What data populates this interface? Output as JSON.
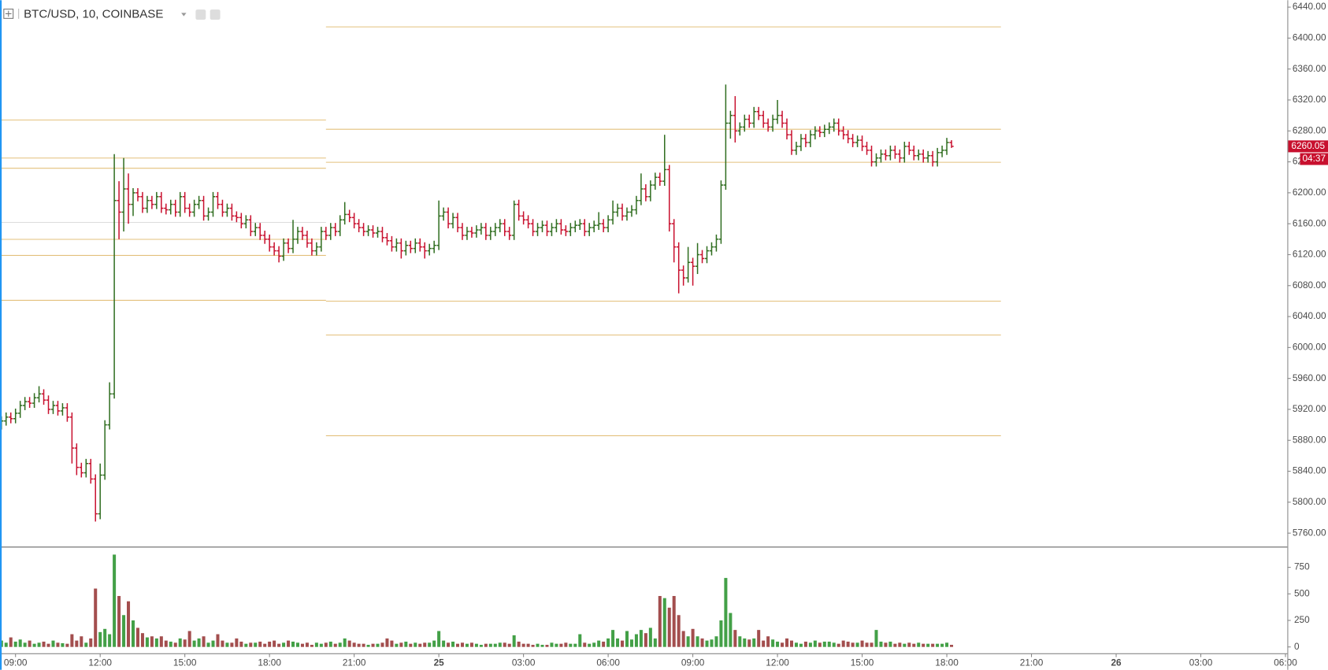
{
  "chart_data": {
    "type": "ohlc",
    "title": "BTC/USD, 10, COINBASE",
    "x": [
      510,
      520,
      530,
      540,
      550,
      560,
      570,
      580,
      590,
      600,
      610,
      620,
      630,
      640,
      650,
      660,
      670,
      680,
      690,
      700,
      710,
      720,
      730,
      740,
      750,
      760,
      770,
      780,
      790,
      800,
      810,
      820,
      830,
      840,
      850,
      860,
      870,
      880,
      890,
      900,
      910,
      920,
      930,
      940,
      950,
      960,
      970,
      980,
      990,
      1000,
      1010,
      1020,
      1030,
      1040,
      1050,
      1060,
      1070,
      1080,
      1090,
      1100,
      1110,
      1120,
      1130,
      1140,
      1150,
      1160,
      1170,
      1180,
      1190,
      1200,
      1210,
      1220,
      1230,
      1240,
      1250,
      1260,
      1270,
      1280,
      1290,
      1300,
      1310,
      1320,
      1330,
      1340,
      1350,
      1360,
      1370,
      1380,
      1390,
      1400,
      1410,
      1420,
      1430,
      1440,
      1450,
      1460,
      1470,
      1480,
      1490,
      1500,
      1510,
      1520,
      1530,
      1540,
      1550,
      1560,
      1570,
      1580,
      1590,
      1600,
      1610,
      1620,
      1630,
      1640,
      1650,
      1660,
      1670,
      1680,
      1690,
      1700,
      1710,
      1720,
      1730,
      1740,
      1750,
      1760,
      1770,
      1780,
      1790,
      1800,
      1810,
      1820,
      1830,
      1840,
      1850,
      1860,
      1870,
      1880,
      1890,
      1900,
      1910,
      1920,
      1930,
      1940,
      1950,
      1960,
      1970,
      1980,
      1990,
      2000,
      2010,
      2020,
      2030,
      2040,
      2050,
      2060,
      2070,
      2080,
      2090,
      2100,
      2110,
      2120,
      2130,
      2140,
      2150,
      2160,
      2170,
      2180,
      2190,
      2200,
      2210,
      2220,
      2230,
      2240,
      2250,
      2260,
      2270,
      2280,
      2290,
      2300,
      2310,
      2320,
      2330,
      2340,
      2350,
      2360,
      2370,
      2380,
      2390,
      2400,
      2410,
      2420,
      2430,
      2440,
      2450,
      2460,
      2470,
      2480,
      2490,
      2500,
      2510,
      2520,
      2530
    ],
    "open": [
      5900,
      5905,
      5910,
      5908,
      5915,
      5925,
      5930,
      5928,
      5935,
      5940,
      5932,
      5920,
      5925,
      5918,
      5922,
      5910,
      5870,
      5845,
      5838,
      5850,
      5830,
      5785,
      5835,
      5900,
      5940,
      6190,
      6175,
      6205,
      6185,
      6200,
      6195,
      6180,
      6190,
      6185,
      6195,
      6180,
      6178,
      6185,
      6175,
      6195,
      6180,
      6175,
      6185,
      6190,
      6170,
      6175,
      6195,
      6185,
      6175,
      6180,
      6170,
      6168,
      6160,
      6165,
      6150,
      6155,
      6145,
      6140,
      6130,
      6125,
      6118,
      6135,
      6128,
      6140,
      6150,
      6145,
      6135,
      6125,
      6130,
      6150,
      6145,
      6155,
      6150,
      6165,
      6172,
      6168,
      6160,
      6155,
      6150,
      6152,
      6148,
      6150,
      6142,
      6138,
      6130,
      6135,
      6125,
      6132,
      6128,
      6135,
      6130,
      6125,
      6128,
      6132,
      6170,
      6175,
      6160,
      6168,
      6155,
      6145,
      6150,
      6148,
      6152,
      6155,
      6145,
      6150,
      6155,
      6160,
      6150,
      6145,
      6185,
      6170,
      6165,
      6160,
      6150,
      6155,
      6158,
      6150,
      6155,
      6160,
      6152,
      6150,
      6155,
      6158,
      6160,
      6150,
      6155,
      6158,
      6160,
      6155,
      6165,
      6175,
      6180,
      6170,
      6175,
      6178,
      6190,
      6205,
      6195,
      6210,
      6220,
      6215,
      6230,
      6160,
      6130,
      6100,
      6090,
      6110,
      6105,
      6120,
      6115,
      6125,
      6130,
      6140,
      6210,
      6290,
      6300,
      6280,
      6285,
      6295,
      6290,
      6305,
      6300,
      6290,
      6285,
      6295,
      6300,
      6290,
      6275,
      6255,
      6260,
      6270,
      6265,
      6275,
      6280,
      6278,
      6282,
      6285,
      6290,
      6280,
      6275,
      6270,
      6265,
      6268,
      6260,
      6255,
      6240,
      6245,
      6250,
      6248,
      6255,
      6250,
      6245,
      6260,
      6255,
      6248,
      6250,
      6245,
      6248,
      6240,
      6252,
      6255,
      6265
    ],
    "high": [
      5911,
      5916,
      5916,
      5921,
      5931,
      5936,
      5936,
      5941,
      5950,
      5946,
      5938,
      5931,
      5931,
      5928,
      5928,
      5916,
      5876,
      5851,
      5856,
      5856,
      5836,
      5850,
      5906,
      5955,
      6250,
      6215,
      6245,
      6225,
      6206,
      6206,
      6201,
      6196,
      6196,
      6201,
      6201,
      6186,
      6191,
      6191,
      6201,
      6201,
      6186,
      6191,
      6196,
      6196,
      6181,
      6201,
      6201,
      6191,
      6186,
      6186,
      6176,
      6174,
      6171,
      6171,
      6161,
      6161,
      6151,
      6146,
      6136,
      6131,
      6141,
      6141,
      6165,
      6156,
      6156,
      6151,
      6141,
      6136,
      6156,
      6156,
      6161,
      6161,
      6171,
      6188,
      6178,
      6174,
      6166,
      6161,
      6158,
      6158,
      6156,
      6156,
      6148,
      6144,
      6141,
      6141,
      6138,
      6138,
      6141,
      6141,
      6136,
      6134,
      6138,
      6190,
      6181,
      6181,
      6174,
      6174,
      6161,
      6156,
      6156,
      6158,
      6161,
      6161,
      6156,
      6161,
      6166,
      6166,
      6156,
      6190,
      6191,
      6176,
      6171,
      6166,
      6161,
      6164,
      6164,
      6161,
      6166,
      6166,
      6158,
      6161,
      6164,
      6166,
      6166,
      6161,
      6164,
      6175,
      6166,
      6171,
      6190,
      6186,
      6186,
      6181,
      6184,
      6196,
      6225,
      6211,
      6216,
      6226,
      6226,
      6275,
      6236,
      6166,
      6136,
      6106,
      6130,
      6116,
      6135,
      6126,
      6131,
      6136,
      6146,
      6216,
      6340,
      6306,
      6325,
      6291,
      6301,
      6301,
      6311,
      6311,
      6306,
      6296,
      6301,
      6320,
      6306,
      6296,
      6281,
      6266,
      6276,
      6276,
      6281,
      6286,
      6286,
      6288,
      6291,
      6296,
      6296,
      6286,
      6281,
      6276,
      6274,
      6274,
      6266,
      6261,
      6251,
      6256,
      6256,
      6261,
      6261,
      6256,
      6266,
      6266,
      6261,
      6256,
      6256,
      6254,
      6254,
      6258,
      6261,
      6271,
      6268
    ],
    "low": [
      5894,
      5899,
      5902,
      5902,
      5909,
      5919,
      5922,
      5922,
      5929,
      5926,
      5914,
      5914,
      5912,
      5912,
      5904,
      5850,
      5835,
      5832,
      5832,
      5824,
      5775,
      5778,
      5829,
      5894,
      5934,
      6140,
      6150,
      6160,
      6170,
      6189,
      6174,
      6174,
      6179,
      6179,
      6174,
      6172,
      6172,
      6169,
      6169,
      6174,
      6169,
      6169,
      6179,
      6164,
      6164,
      6169,
      6179,
      6169,
      6169,
      6164,
      6162,
      6154,
      6154,
      6144,
      6144,
      6139,
      6134,
      6124,
      6119,
      6110,
      6112,
      6122,
      6122,
      6134,
      6139,
      6129,
      6119,
      6119,
      6124,
      6139,
      6139,
      6144,
      6144,
      6159,
      6162,
      6154,
      6149,
      6144,
      6144,
      6142,
      6142,
      6136,
      6132,
      6124,
      6124,
      6115,
      6119,
      6122,
      6122,
      6124,
      6115,
      6119,
      6122,
      6126,
      6164,
      6154,
      6154,
      6149,
      6139,
      6139,
      6142,
      6142,
      6146,
      6139,
      6139,
      6144,
      6149,
      6144,
      6139,
      6139,
      6164,
      6159,
      6154,
      6144,
      6144,
      6149,
      6144,
      6144,
      6149,
      6146,
      6144,
      6144,
      6149,
      6152,
      6144,
      6144,
      6149,
      6152,
      6149,
      6149,
      6159,
      6169,
      6164,
      6164,
      6169,
      6172,
      6184,
      6189,
      6189,
      6204,
      6209,
      6209,
      6150,
      6110,
      6070,
      6080,
      6084,
      6080,
      6095,
      6109,
      6109,
      6119,
      6124,
      6134,
      6204,
      6270,
      6265,
      6274,
      6279,
      6284,
      6284,
      6294,
      6284,
      6279,
      6279,
      6289,
      6284,
      6269,
      6249,
      6249,
      6254,
      6259,
      6259,
      6269,
      6272,
      6272,
      6276,
      6279,
      6274,
      6269,
      6264,
      6259,
      6259,
      6254,
      6249,
      6234,
      6234,
      6239,
      6242,
      6242,
      6244,
      6239,
      6239,
      6249,
      6242,
      6242,
      6239,
      6239,
      6234,
      6234,
      6246,
      6249,
      6258
    ],
    "close": [
      5905,
      5910,
      5908,
      5915,
      5925,
      5930,
      5928,
      5935,
      5940,
      5932,
      5920,
      5925,
      5918,
      5922,
      5910,
      5870,
      5845,
      5838,
      5850,
      5830,
      5785,
      5835,
      5900,
      5940,
      6190,
      6175,
      6205,
      6185,
      6200,
      6195,
      6180,
      6190,
      6185,
      6195,
      6180,
      6178,
      6185,
      6175,
      6195,
      6180,
      6175,
      6185,
      6190,
      6170,
      6175,
      6195,
      6185,
      6175,
      6180,
      6170,
      6168,
      6160,
      6165,
      6150,
      6155,
      6145,
      6140,
      6130,
      6125,
      6118,
      6135,
      6128,
      6140,
      6150,
      6145,
      6135,
      6125,
      6130,
      6150,
      6145,
      6155,
      6150,
      6165,
      6172,
      6168,
      6160,
      6155,
      6150,
      6152,
      6148,
      6150,
      6142,
      6138,
      6130,
      6135,
      6125,
      6132,
      6128,
      6135,
      6130,
      6125,
      6128,
      6132,
      6170,
      6175,
      6160,
      6168,
      6155,
      6145,
      6150,
      6148,
      6152,
      6155,
      6145,
      6150,
      6155,
      6160,
      6150,
      6145,
      6185,
      6170,
      6165,
      6160,
      6150,
      6155,
      6158,
      6150,
      6155,
      6160,
      6152,
      6150,
      6155,
      6158,
      6160,
      6150,
      6155,
      6158,
      6160,
      6155,
      6165,
      6175,
      6180,
      6170,
      6175,
      6178,
      6190,
      6205,
      6195,
      6210,
      6220,
      6215,
      6230,
      6160,
      6130,
      6100,
      6090,
      6110,
      6105,
      6120,
      6115,
      6125,
      6130,
      6140,
      6210,
      6290,
      6300,
      6280,
      6285,
      6295,
      6290,
      6305,
      6300,
      6290,
      6285,
      6295,
      6300,
      6290,
      6275,
      6255,
      6260,
      6270,
      6265,
      6275,
      6280,
      6278,
      6282,
      6285,
      6290,
      6280,
      6275,
      6270,
      6265,
      6268,
      6260,
      6255,
      6240,
      6245,
      6250,
      6248,
      6255,
      6250,
      6245,
      6260,
      6255,
      6248,
      6250,
      6245,
      6248,
      6240,
      6252,
      6255,
      6265,
      6260.05
    ],
    "volume": [
      60,
      40,
      90,
      50,
      70,
      40,
      60,
      30,
      40,
      50,
      30,
      60,
      40,
      35,
      30,
      120,
      60,
      100,
      40,
      80,
      550,
      140,
      170,
      120,
      870,
      480,
      300,
      430,
      250,
      180,
      130,
      90,
      100,
      80,
      100,
      60,
      50,
      40,
      80,
      70,
      150,
      60,
      80,
      100,
      40,
      60,
      120,
      60,
      40,
      40,
      80,
      50,
      30,
      40,
      40,
      50,
      30,
      50,
      60,
      30,
      40,
      60,
      50,
      40,
      30,
      40,
      20,
      40,
      30,
      40,
      50,
      30,
      40,
      80,
      60,
      40,
      30,
      30,
      20,
      30,
      30,
      40,
      80,
      60,
      30,
      40,
      50,
      30,
      40,
      30,
      40,
      40,
      60,
      150,
      60,
      40,
      50,
      30,
      40,
      30,
      40,
      30,
      20,
      30,
      30,
      30,
      40,
      40,
      30,
      110,
      50,
      30,
      30,
      20,
      30,
      20,
      20,
      40,
      30,
      30,
      40,
      30,
      30,
      120,
      40,
      30,
      40,
      60,
      50,
      80,
      160,
      80,
      60,
      150,
      70,
      120,
      160,
      130,
      180,
      80,
      480,
      460,
      370,
      480,
      300,
      150,
      100,
      170,
      100,
      80,
      60,
      70,
      100,
      250,
      650,
      320,
      160,
      100,
      80,
      70,
      80,
      160,
      60,
      100,
      70,
      50,
      40,
      80,
      60,
      40,
      30,
      50,
      40,
      60,
      40,
      50,
      50,
      40,
      30,
      60,
      50,
      40,
      40,
      60,
      40,
      40,
      160,
      50,
      40,
      50,
      30,
      40,
      30,
      40,
      30,
      40,
      30,
      30,
      30,
      30,
      30,
      40,
      20
    ],
    "up_color": "#2f6d1f",
    "down_color": "#c8102e",
    "volume_up_color": "#43a047",
    "volume_down_color": "#a34e4e",
    "xlim": [
      507,
      3244
    ],
    "xticks": [
      {
        "value": 540,
        "label": "09:00"
      },
      {
        "value": 720,
        "label": "12:00"
      },
      {
        "value": 900,
        "label": "15:00"
      },
      {
        "value": 1080,
        "label": "18:00"
      },
      {
        "value": 1260,
        "label": "21:00"
      },
      {
        "value": 1440,
        "label": "25"
      },
      {
        "value": 1620,
        "label": "03:00"
      },
      {
        "value": 1800,
        "label": "06:00"
      },
      {
        "value": 1980,
        "label": "09:00"
      },
      {
        "value": 2160,
        "label": "12:00"
      },
      {
        "value": 2340,
        "label": "15:00"
      },
      {
        "value": 2520,
        "label": "18:00"
      },
      {
        "value": 2700,
        "label": "21:00"
      },
      {
        "value": 2880,
        "label": "26"
      },
      {
        "value": 3060,
        "label": "03:00"
      },
      {
        "value": 3240,
        "label": "06:00"
      }
    ],
    "ylim": [
      5742,
      6449
    ],
    "yticks": [
      {
        "value": 5760,
        "label": "5760.00"
      },
      {
        "value": 5800,
        "label": "5800.00"
      },
      {
        "value": 5840,
        "label": "5840.00"
      },
      {
        "value": 5880,
        "label": "5880.00"
      },
      {
        "value": 5920,
        "label": "5920.00"
      },
      {
        "value": 5960,
        "label": "5960.00"
      },
      {
        "value": 6000,
        "label": "6000.00"
      },
      {
        "value": 6040,
        "label": "6040.00"
      },
      {
        "value": 6080,
        "label": "6080.00"
      },
      {
        "value": 6120,
        "label": "6120.00"
      },
      {
        "value": 6160,
        "label": "6160.00"
      },
      {
        "value": 6200,
        "label": "6200.00"
      },
      {
        "value": 6240,
        "label": "6240.00"
      },
      {
        "value": 6280,
        "label": "6280.00"
      },
      {
        "value": 6320,
        "label": "6320.00"
      },
      {
        "value": 6360,
        "label": "6360.00"
      },
      {
        "value": 6400,
        "label": "6400.00"
      },
      {
        "value": 6440,
        "label": "6440.00"
      }
    ],
    "volume_ylim": [
      -56,
      933
    ],
    "volume_yticks": [
      0,
      250,
      500,
      750
    ],
    "levels": [
      {
        "value": 6295,
        "start": 507,
        "end": 1200,
        "color": "#e3c07c"
      },
      {
        "value": 6245,
        "start": 507,
        "end": 1200,
        "color": "#e3c07c"
      },
      {
        "value": 6232,
        "start": 507,
        "end": 1200,
        "color": "#e3c07c"
      },
      {
        "value": 6162,
        "start": 507,
        "end": 1200,
        "color": "#dcdcdc"
      },
      {
        "value": 6140,
        "start": 507,
        "end": 1200,
        "color": "#e3c07c"
      },
      {
        "value": 6120,
        "start": 507,
        "end": 1200,
        "color": "#e3c07c"
      },
      {
        "value": 6062,
        "start": 507,
        "end": 1200,
        "color": "#e3c07c"
      },
      {
        "value": 6415,
        "start": 1200,
        "end": 2635,
        "color": "#e3c07c"
      },
      {
        "value": 6283,
        "start": 1200,
        "end": 2635,
        "color": "#e3c07c"
      },
      {
        "value": 6240,
        "start": 1200,
        "end": 2635,
        "color": "#e3c07c"
      },
      {
        "value": 6060,
        "start": 1200,
        "end": 2635,
        "color": "#e3c07c"
      },
      {
        "value": 6017,
        "start": 1200,
        "end": 2635,
        "color": "#e3c07c"
      },
      {
        "value": 5887,
        "start": 1200,
        "end": 2635,
        "color": "#e3c07c"
      }
    ],
    "countdown": "04:37"
  }
}
